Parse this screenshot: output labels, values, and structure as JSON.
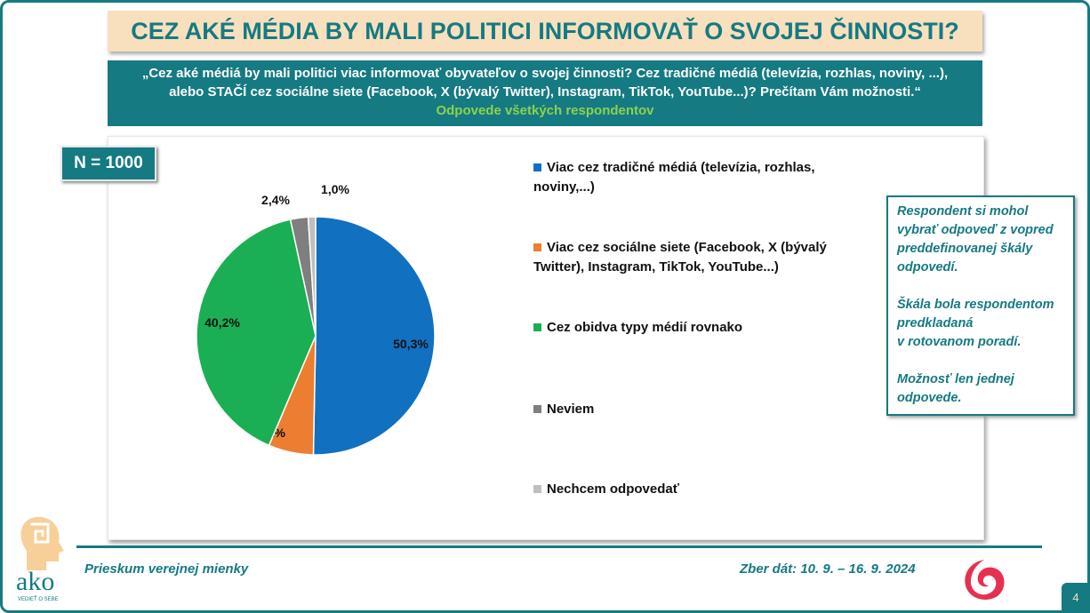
{
  "title": "CEZ AKÉ MÉDIA BY MALI POLITICI INFORMOVAŤ O SVOJEJ ČINNOSTI?",
  "question": {
    "line1": "„Cez aké médiá by mali politici viac informovať obyvateľov o svojej činnosti? Cez tradičné médiá (televízia, rozhlas, noviny, ...),",
    "line2": "alebo STAČÍ cez sociálne siete (Facebook, X (bývalý Twitter), Instagram, TikTok, YouTube...)? Prečítam Vám možnosti.“",
    "sub": "Odpovede všetkých respondentov"
  },
  "n_label": "N = 1000",
  "note": "Respondent si mohol vybrať odpoveď z vopred preddefinovanej škály odpovedí.\n\nŠkála bola respondentom predkladaná\nv rotovanom poradí.\n\nMožnosť len jednej odpovede.",
  "footer": {
    "left": "Prieskum verejnej mienky",
    "right": "Zber dát: 10. 9. – 16. 9. 2024",
    "page": "4",
    "logo": "ako",
    "logo_tagline": "VEDIEŤ O SEBE"
  },
  "chart_data": {
    "type": "pie",
    "start": "top",
    "direction": "clockwise",
    "categories": [
      "Viac cez tradičné médiá (televízia, rozhlas, noviny,...)",
      "Viac cez sociálne siete (Facebook, X (bývalý Twitter), Instagram, TikTok, YouTube...)",
      "Cez obidva typy médií rovnako",
      "Neviem",
      "Nechcem odpovedať"
    ],
    "values": [
      50.3,
      6.1,
      40.2,
      2.4,
      1.0
    ],
    "labels": [
      "50,3%",
      "6,1%",
      "40,2%",
      "2,4%",
      "1,0%"
    ],
    "colors": [
      "#1170c0",
      "#ed7d31",
      "#1aaf54",
      "#7f7f7f",
      "#bfbfbf"
    ],
    "legend": "right"
  }
}
